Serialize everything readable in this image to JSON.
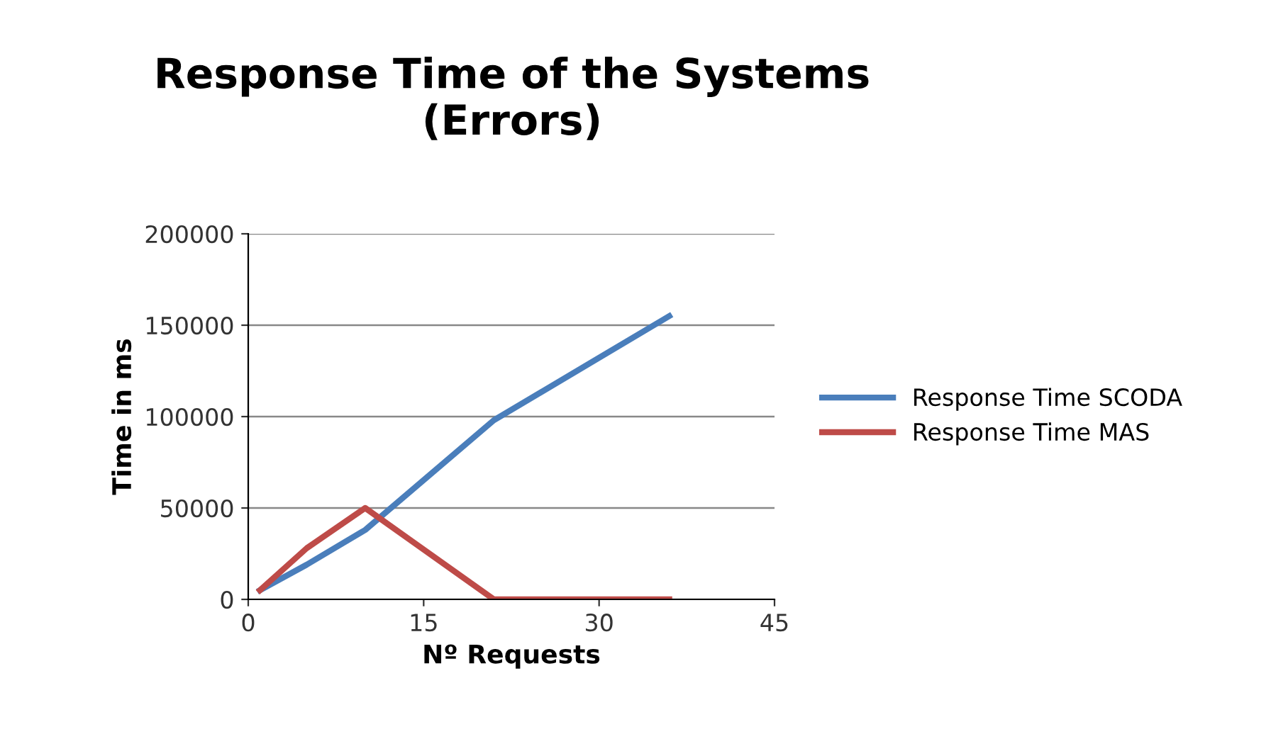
{
  "chart_data": {
    "type": "line",
    "title": "Response Time of the Systems\n(Errors)",
    "xlabel": "Nº Requests",
    "ylabel": "Time in ms",
    "x": [
      1,
      5,
      10,
      21,
      36
    ],
    "series": [
      {
        "name": "Response Time SCODA",
        "color": "#4a7ebb",
        "values": [
          5000,
          19000,
          38000,
          98000,
          155000
        ]
      },
      {
        "name": "Response Time MAS",
        "color": "#be4b48",
        "values": [
          5000,
          28000,
          50000,
          0,
          0
        ]
      }
    ],
    "xlim": [
      0,
      45
    ],
    "xticks": [
      0,
      15,
      30,
      45
    ],
    "ylim": [
      0,
      200000
    ],
    "yticks": [
      0,
      50000,
      100000,
      150000,
      200000
    ],
    "grid": "y",
    "legend": "right",
    "marker": "none",
    "line_style": "solid"
  }
}
